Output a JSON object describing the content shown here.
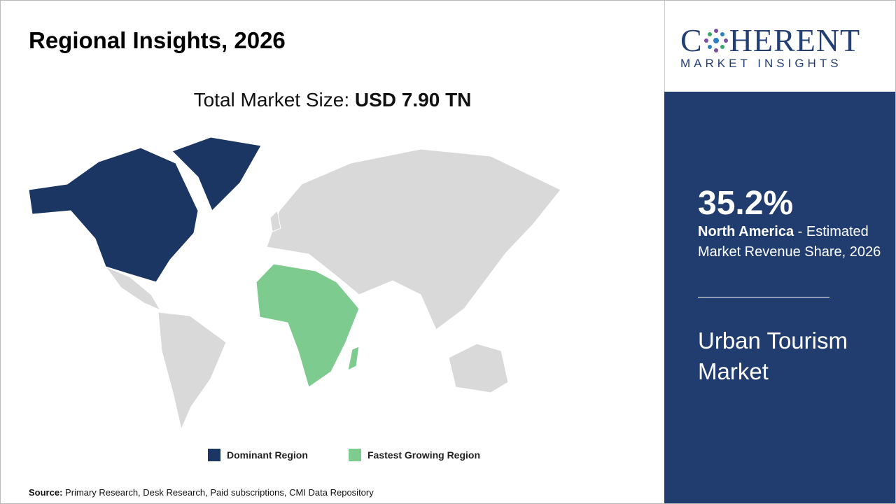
{
  "header": {
    "title": "Regional Insights, 2026"
  },
  "market_size": {
    "label": "Total Market Size:",
    "value": "USD 7.90 TN"
  },
  "legend": {
    "dominant": "Dominant Region",
    "fastest": "Fastest Growing Region"
  },
  "source": {
    "label": "Source:",
    "text": "Primary Research, Desk Research, Paid subscriptions, CMI Data Repository"
  },
  "logo": {
    "left": "C",
    "right": "HERENT",
    "tagline": "MARKET INSIGHTS"
  },
  "panel": {
    "share": "35.2%",
    "region": "North America",
    "description": " - Estimated Market Revenue Share, 2026",
    "market": "Urban Tourism Market"
  }
}
